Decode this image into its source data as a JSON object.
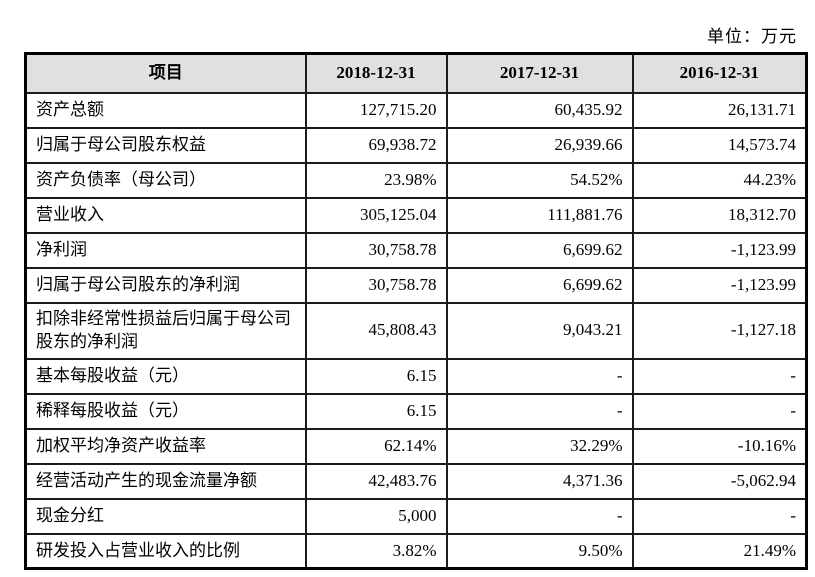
{
  "unit_label": "单位：万元",
  "colors": {
    "header_bg": "#e0e0e0",
    "border": "#000000",
    "text": "#000000",
    "page_bg": "#ffffff"
  },
  "table": {
    "headers": [
      "项目",
      "2018-12-31",
      "2017-12-31",
      "2016-12-31"
    ],
    "rows": [
      {
        "item": "资产总额",
        "values": [
          "127,715.20",
          "60,435.92",
          "26,131.71"
        ]
      },
      {
        "item": "归属于母公司股东权益",
        "values": [
          "69,938.72",
          "26,939.66",
          "14,573.74"
        ]
      },
      {
        "item": "资产负债率（母公司）",
        "values": [
          "23.98%",
          "54.52%",
          "44.23%"
        ]
      },
      {
        "item": "营业收入",
        "values": [
          "305,125.04",
          "111,881.76",
          "18,312.70"
        ]
      },
      {
        "item": "净利润",
        "values": [
          "30,758.78",
          "6,699.62",
          "-1,123.99"
        ]
      },
      {
        "item": "归属于母公司股东的净利润",
        "values": [
          "30,758.78",
          "6,699.62",
          "-1,123.99"
        ]
      },
      {
        "item": "扣除非经常性损益后归属于母公司股东的净利润",
        "values": [
          "45,808.43",
          "9,043.21",
          "-1,127.18"
        ]
      },
      {
        "item": "基本每股收益（元）",
        "values": [
          "6.15",
          "-",
          "-"
        ]
      },
      {
        "item": "稀释每股收益（元）",
        "values": [
          "6.15",
          "-",
          "-"
        ]
      },
      {
        "item": "加权平均净资产收益率",
        "values": [
          "62.14%",
          "32.29%",
          "-10.16%"
        ]
      },
      {
        "item": "经营活动产生的现金流量净额",
        "values": [
          "42,483.76",
          "4,371.36",
          "-5,062.94"
        ]
      },
      {
        "item": "现金分红",
        "values": [
          "5,000",
          "-",
          "-"
        ]
      },
      {
        "item": "研发投入占营业收入的比例",
        "values": [
          "3.82%",
          "9.50%",
          "21.49%"
        ]
      }
    ]
  }
}
